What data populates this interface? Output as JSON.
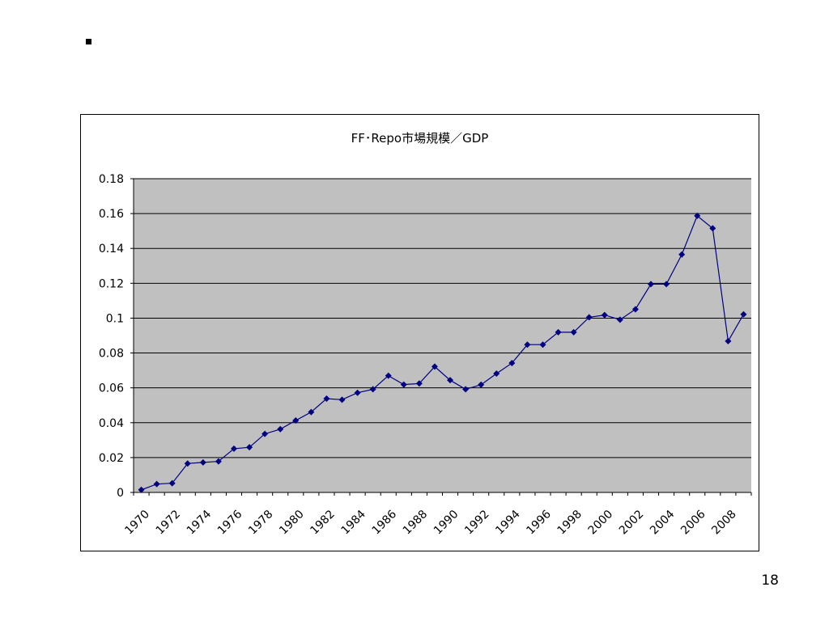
{
  "slide": {
    "bullet": "▪",
    "page_number": "18"
  },
  "chart_data": {
    "type": "line",
    "title": "FF･Repo市場規模／GDP",
    "xlabel": "",
    "ylabel": "",
    "x": [
      1970,
      1971,
      1972,
      1973,
      1974,
      1975,
      1976,
      1977,
      1978,
      1979,
      1980,
      1981,
      1982,
      1983,
      1984,
      1985,
      1986,
      1987,
      1988,
      1989,
      1990,
      1991,
      1992,
      1993,
      1994,
      1995,
      1996,
      1997,
      1998,
      1999,
      2000,
      2001,
      2002,
      2003,
      2004,
      2005,
      2006,
      2007,
      2008,
      2009
    ],
    "values": [
      0.0015,
      0.0048,
      0.0053,
      0.0166,
      0.0172,
      0.0178,
      0.0251,
      0.0259,
      0.0336,
      0.0363,
      0.0413,
      0.0461,
      0.0538,
      0.0532,
      0.0572,
      0.0592,
      0.067,
      0.0619,
      0.0625,
      0.0722,
      0.0644,
      0.0592,
      0.0618,
      0.0682,
      0.0742,
      0.0848,
      0.0848,
      0.0919,
      0.0919,
      0.1005,
      0.1018,
      0.0991,
      0.1051,
      0.1195,
      0.1195,
      0.1365,
      0.1587,
      0.1515,
      0.0868,
      0.1022
    ],
    "x_tick_labels": [
      "1970",
      "1972",
      "1974",
      "1976",
      "1978",
      "1980",
      "1982",
      "1984",
      "1986",
      "1988",
      "1990",
      "1992",
      "1994",
      "1996",
      "1998",
      "2000",
      "2002",
      "2004",
      "2006",
      "2008"
    ],
    "y_tick_labels": [
      "0",
      "0.02",
      "0.04",
      "0.06",
      "0.08",
      "0.1",
      "0.12",
      "0.14",
      "0.16",
      "0.18"
    ],
    "ylim": [
      0,
      0.18
    ],
    "grid": true,
    "legend": "none",
    "colors": {
      "line": "#000080",
      "marker": "#000080",
      "plot_background": "#c0c0c0",
      "gridline": "#000000"
    }
  }
}
